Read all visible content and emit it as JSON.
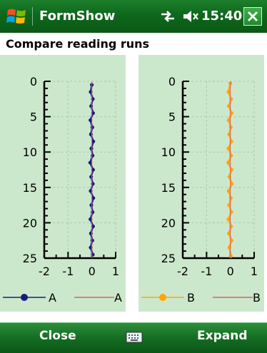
{
  "window": {
    "title": "FormShow",
    "clock": "15:40"
  },
  "page": {
    "title": "Compare reading runs"
  },
  "menu": {
    "left": "Close",
    "right": "Expand"
  },
  "icons": {
    "start": "windows-flag-icon",
    "connectivity": "connectivity-arrows-icon",
    "volume": "speaker-muted-icon",
    "close": "close-icon",
    "keyboard": "keyboard-icon"
  },
  "colors": {
    "plot_bg": "#cce8cc",
    "series_a": "#1a1a80",
    "series_b": "#ffa500",
    "reference": "#e06060"
  },
  "chart_data": [
    {
      "type": "scatter",
      "xlim": [
        -2,
        1
      ],
      "ylim": [
        25,
        0
      ],
      "x_ticks": [
        "-2",
        "-1",
        "0",
        "1"
      ],
      "y_ticks": [
        "0",
        "5",
        "10",
        "15",
        "20",
        "25"
      ],
      "grid": true,
      "legend_placement": "bottom",
      "series": [
        {
          "name": "A",
          "color": "#1a1a80",
          "marker": "circle",
          "points": [
            [
              0.0,
              0.5
            ],
            [
              -0.05,
              1.5
            ],
            [
              0.04,
              2.5
            ],
            [
              -0.03,
              3.5
            ],
            [
              0.05,
              4.5
            ],
            [
              -0.06,
              5.5
            ],
            [
              0.02,
              6.5
            ],
            [
              -0.04,
              7.5
            ],
            [
              0.06,
              8.5
            ],
            [
              -0.02,
              9.5
            ],
            [
              0.03,
              10.5
            ],
            [
              -0.07,
              11.5
            ],
            [
              0.05,
              12.5
            ],
            [
              -0.03,
              13.5
            ],
            [
              0.04,
              14.5
            ],
            [
              -0.05,
              15.5
            ],
            [
              0.06,
              16.5
            ],
            [
              -0.02,
              17.5
            ],
            [
              0.03,
              18.5
            ],
            [
              -0.06,
              19.5
            ],
            [
              0.05,
              20.5
            ],
            [
              -0.04,
              21.5
            ],
            [
              0.02,
              22.5
            ],
            [
              -0.05,
              23.5
            ],
            [
              0.04,
              24.5
            ]
          ]
        },
        {
          "name": "A",
          "color": "#e06060",
          "marker": "none",
          "points": [
            [
              0,
              0
            ],
            [
              0,
              25
            ]
          ]
        }
      ]
    },
    {
      "type": "scatter",
      "xlim": [
        -2,
        1
      ],
      "ylim": [
        25,
        0
      ],
      "x_ticks": [
        "-2",
        "-1",
        "0",
        "1"
      ],
      "y_ticks": [
        "0",
        "5",
        "10",
        "15",
        "20",
        "25"
      ],
      "grid": true,
      "legend_placement": "bottom",
      "series": [
        {
          "name": "B",
          "color": "#ffa500",
          "marker": "circle",
          "points": [
            [
              0.0,
              0.3
            ],
            [
              -0.08,
              1.5
            ],
            [
              0.03,
              2.5
            ],
            [
              -0.06,
              3.5
            ],
            [
              0.05,
              4.5
            ],
            [
              -0.07,
              5.5
            ],
            [
              0.02,
              6.5
            ],
            [
              -0.05,
              7.5
            ],
            [
              0.04,
              8.5
            ],
            [
              -0.08,
              9.5
            ],
            [
              0.03,
              10.5
            ],
            [
              -0.09,
              11.5
            ],
            [
              0.05,
              12.5
            ],
            [
              -0.04,
              13.5
            ],
            [
              0.06,
              14.5
            ],
            [
              -0.07,
              15.5
            ],
            [
              0.02,
              16.5
            ],
            [
              -0.05,
              17.5
            ],
            [
              0.04,
              18.5
            ],
            [
              -0.08,
              19.5
            ],
            [
              0.03,
              20.5
            ],
            [
              -0.06,
              21.5
            ],
            [
              0.05,
              22.5
            ],
            [
              -0.04,
              23.5
            ],
            [
              0.02,
              24.7
            ]
          ]
        },
        {
          "name": "B",
          "color": "#e06060",
          "marker": "none",
          "points": [
            [
              0,
              0
            ],
            [
              0,
              25
            ]
          ]
        }
      ]
    }
  ]
}
